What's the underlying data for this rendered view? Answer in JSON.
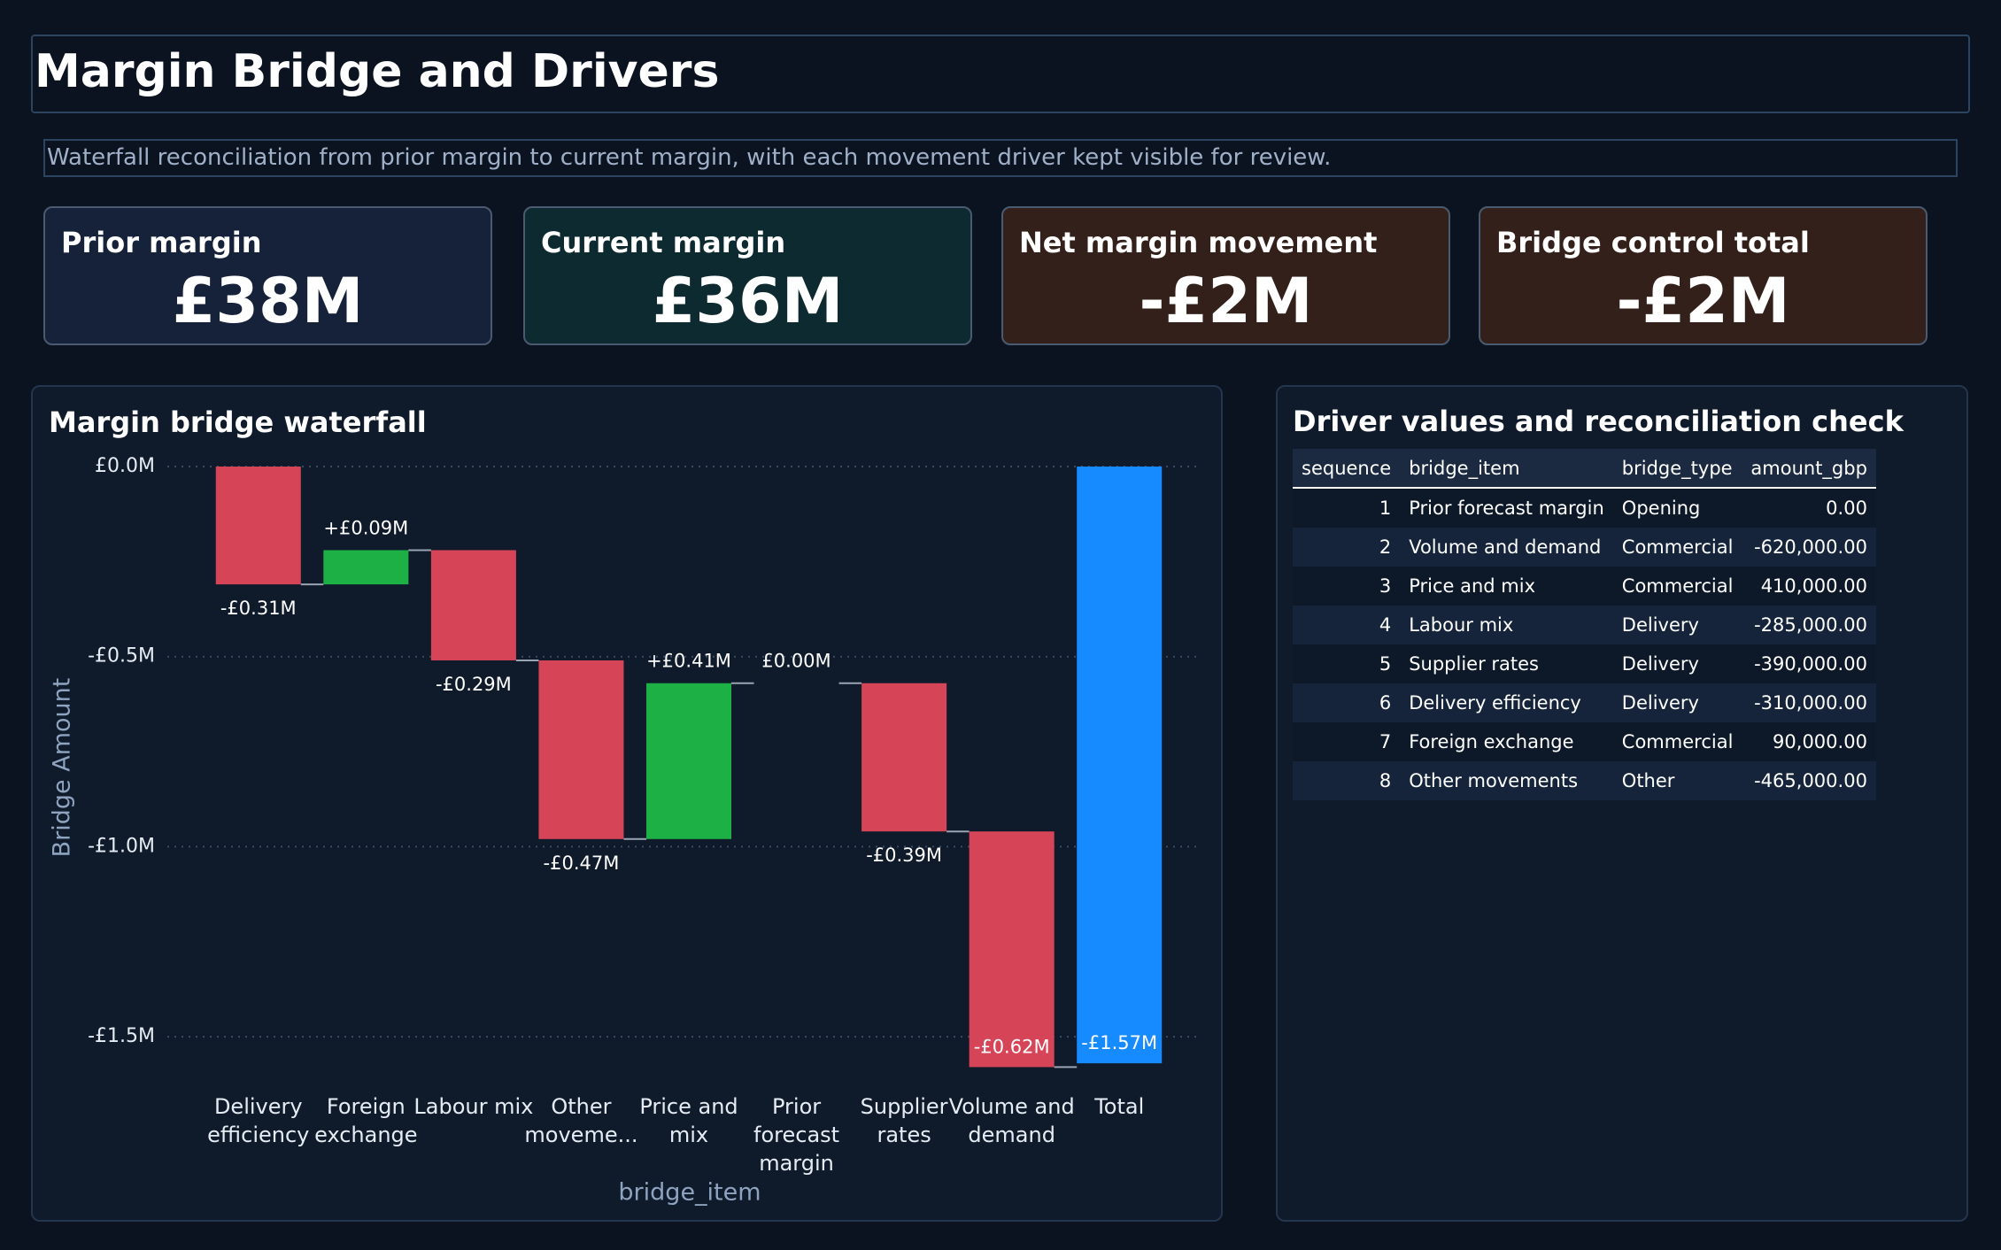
{
  "header": {
    "title": "Margin Bridge and Drivers",
    "subtitle": "Waterfall reconciliation from prior margin to current margin, with each movement driver kept visible for review."
  },
  "kpis": [
    {
      "label": "Prior margin",
      "value": "£38M"
    },
    {
      "label": "Current margin",
      "value": "£36M"
    },
    {
      "label": "Net margin movement",
      "value": "-£2M"
    },
    {
      "label": "Bridge control total",
      "value": "-£2M"
    }
  ],
  "chart_data": {
    "type": "waterfall",
    "title": "Margin bridge waterfall",
    "x_label": "bridge_item",
    "y_label": "Bridge Amount",
    "categories": [
      "Delivery efficiency",
      "Foreign exchange",
      "Labour mix",
      "Other moveme...",
      "Price and mix",
      "Prior forecast margin",
      "Supplier rates",
      "Volume and demand",
      "Total"
    ],
    "measures": [
      "relative",
      "relative",
      "relative",
      "relative",
      "relative",
      "relative",
      "relative",
      "relative",
      "total"
    ],
    "values": [
      -0.31,
      0.09,
      -0.29,
      -0.47,
      0.41,
      0.0,
      -0.39,
      -0.62,
      -1.57
    ],
    "value_labels": [
      "-£0.31M",
      "+£0.09M",
      "-£0.29M",
      "-£0.47M",
      "+£0.41M",
      "£0.00M",
      "-£0.39M",
      "-£0.62M",
      "-£1.57M"
    ],
    "increasing_color": "#1db044",
    "decreasing_color": "#d64457",
    "total_color": "#168bff",
    "ylim": [
      -1.6,
      0
    ],
    "yticks": [
      {
        "value": 0,
        "label": "£0.0M"
      },
      {
        "value": -0.5,
        "label": "-£0.5M"
      },
      {
        "value": -1,
        "label": "-£1.0M"
      },
      {
        "value": -1.5,
        "label": "-£1.5M"
      }
    ],
    "grid": true
  },
  "table": {
    "title": "Driver values and reconciliation check",
    "columns": [
      "sequence",
      "bridge_item",
      "bridge_type",
      "amount_gbp"
    ],
    "rows": [
      [
        1,
        "Prior forecast margin",
        "Opening",
        "0.00"
      ],
      [
        2,
        "Volume and demand",
        "Commercial",
        "-620,000.00"
      ],
      [
        3,
        "Price and mix",
        "Commercial",
        "410,000.00"
      ],
      [
        4,
        "Labour mix",
        "Delivery",
        "-285,000.00"
      ],
      [
        5,
        "Supplier rates",
        "Delivery",
        "-390,000.00"
      ],
      [
        6,
        "Delivery efficiency",
        "Delivery",
        "-310,000.00"
      ],
      [
        7,
        "Foreign exchange",
        "Commercial",
        "90,000.00"
      ],
      [
        8,
        "Other movements",
        "Other",
        "-465,000.00"
      ]
    ]
  }
}
